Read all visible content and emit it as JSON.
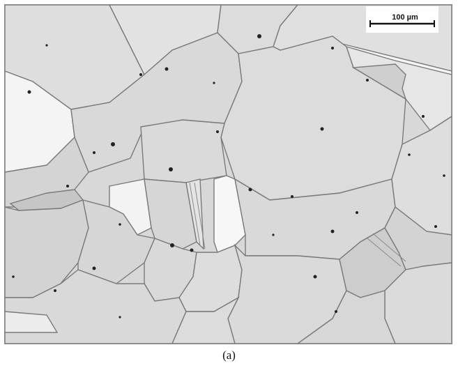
{
  "figure": {
    "scale_bar_label": "100 µm",
    "caption": "(a)",
    "colors": {
      "background": "#dcdcdc",
      "grain_light": "#e8e8e8",
      "grain_mid": "#d6d6d6",
      "grain_dark": "#c4c4c4",
      "boundary": "#7a7a7a",
      "inclusion": "#222222",
      "scale_box": "#ffffff"
    }
  }
}
